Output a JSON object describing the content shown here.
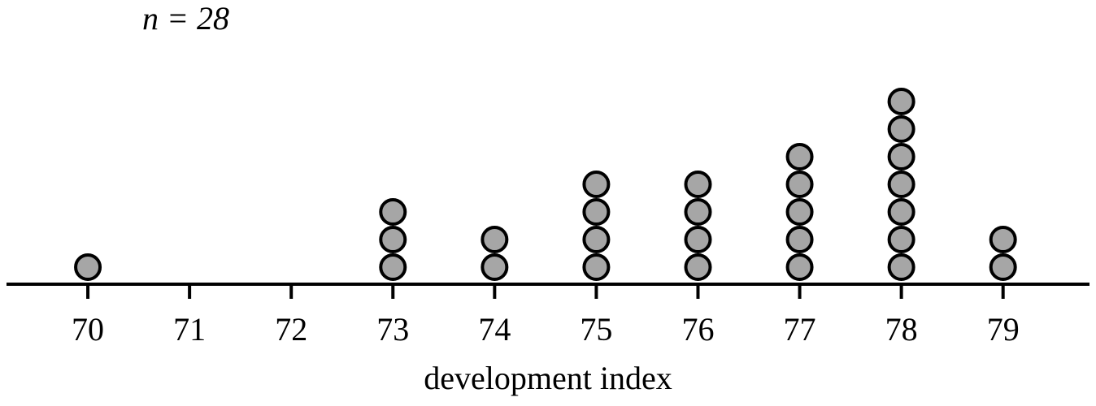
{
  "chart_data": {
    "type": "dot",
    "annotation": "n = 28",
    "x_label": "development index",
    "x": [
      70,
      71,
      72,
      73,
      74,
      75,
      76,
      77,
      78,
      79
    ],
    "values": [
      1,
      0,
      0,
      3,
      2,
      4,
      4,
      5,
      7,
      2
    ],
    "color": "#a6a6a6",
    "xlim": [
      69.2,
      79.85
    ],
    "xticks": [
      70,
      71,
      72,
      73,
      74,
      75,
      76,
      77,
      78,
      79
    ]
  }
}
